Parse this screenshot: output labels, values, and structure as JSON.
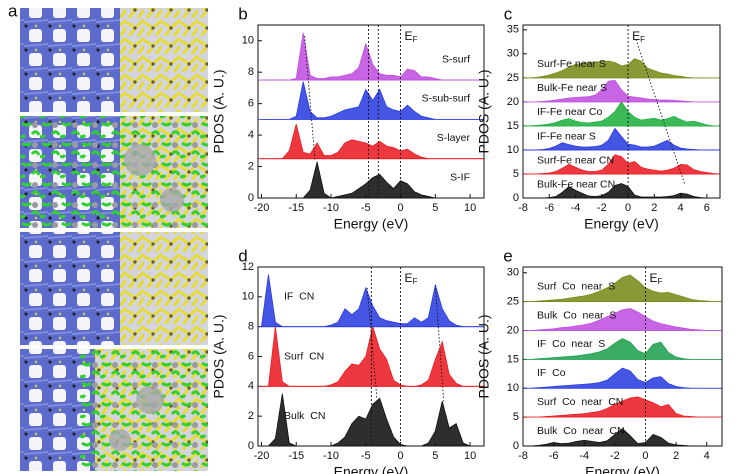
{
  "panel_a": {
    "label": "a"
  },
  "chart_data": [
    {
      "type": "area",
      "panel": "b",
      "xlabel": "Energy (eV)",
      "ylabel": "PDOS (A. U.)",
      "ef_label": {
        "main": "E",
        "sub": "F"
      },
      "x": [
        -20,
        -19,
        -18,
        -17,
        -16,
        -15,
        -14,
        -13,
        -12,
        -11,
        -10,
        -9,
        -8,
        -7,
        -6,
        -5,
        -4,
        -3,
        -2,
        -1,
        0,
        1,
        2,
        3,
        4,
        5,
        6,
        7,
        8,
        9,
        10,
        11,
        12
      ],
      "xlim": [
        -20.5,
        12
      ],
      "xticks": [
        -20,
        -15,
        -10,
        -5,
        0,
        5,
        10
      ],
      "ylim": [
        0,
        11
      ],
      "yticks": [
        0,
        2,
        4,
        6,
        8,
        10
      ],
      "reference_lines": [
        -4.6,
        -3.2,
        0
      ],
      "guide_lines": [
        [
          -13.8,
          10.3,
          -12.3,
          2.4
        ]
      ],
      "series": [
        {
          "name": "S-surf",
          "color": "#c050e0",
          "offset": 7.5,
          "values": [
            0,
            0,
            0,
            0,
            0,
            0.1,
            3.0,
            0.3,
            0.1,
            0.1,
            0.2,
            0.2,
            0.3,
            0.4,
            0.8,
            2.3,
            1.0,
            0.4,
            0.3,
            0.3,
            0.2,
            0.7,
            0.6,
            0.2,
            0.2,
            0.1,
            0,
            0,
            0,
            0,
            0,
            0,
            0
          ]
        },
        {
          "name": "S-sub-surf",
          "color": "#2b3de0",
          "offset": 5,
          "values": [
            0,
            0,
            0,
            0,
            0,
            0.2,
            2.4,
            0.5,
            0.1,
            0.1,
            0.2,
            0.4,
            0.6,
            0.7,
            0.8,
            1.9,
            1.2,
            1.9,
            0.8,
            0.6,
            0.5,
            0.9,
            0.5,
            0.2,
            0.1,
            0,
            0,
            0,
            0,
            0,
            0,
            0,
            0
          ]
        },
        {
          "name": "S-layer",
          "color": "#ec1c24",
          "offset": 2.5,
          "values": [
            0,
            0,
            0,
            0,
            0.5,
            2.2,
            0.4,
            0.3,
            1.0,
            0.2,
            0.2,
            0.4,
            1.0,
            1.2,
            1.1,
            1.0,
            0.8,
            1.1,
            0.8,
            0.7,
            0.5,
            0.6,
            0.3,
            0.1,
            0,
            0,
            0,
            0,
            0,
            0,
            0,
            0,
            0
          ]
        },
        {
          "name": "S-IF",
          "color": "#111111",
          "offset": 0,
          "values": [
            0,
            0,
            0,
            0,
            0,
            0,
            0,
            0.5,
            2.3,
            0.3,
            0,
            0.1,
            0.2,
            0.3,
            0.6,
            0.9,
            1.3,
            1.5,
            1.0,
            0.6,
            1.1,
            0.9,
            0.4,
            0.2,
            0.1,
            0,
            0,
            0,
            0,
            0,
            0,
            0,
            0
          ]
        }
      ]
    },
    {
      "type": "area",
      "panel": "c",
      "xlabel": "Energy (eV)",
      "ylabel": "PDOS (A. U.)",
      "ef_label": {
        "main": "E",
        "sub": "F"
      },
      "x": [
        -8,
        -7.5,
        -7,
        -6.5,
        -6,
        -5.5,
        -5,
        -4.5,
        -4,
        -3.5,
        -3,
        -2.5,
        -2,
        -1.5,
        -1,
        -0.5,
        0,
        0.5,
        1,
        1.5,
        2,
        2.5,
        3,
        3.5,
        4,
        4.5,
        5,
        5.5,
        6,
        6.5,
        7
      ],
      "xlim": [
        -8,
        7
      ],
      "xticks": [
        -8,
        -6,
        -4,
        -2,
        0,
        2,
        4,
        6
      ],
      "ylim": [
        0,
        36
      ],
      "yticks": [
        0,
        5,
        10,
        15,
        20,
        25,
        30,
        35
      ],
      "reference_lines": [
        0
      ],
      "guide_lines": [
        [
          0.6,
          33,
          4.3,
          3
        ]
      ],
      "series": [
        {
          "name": "Surf-Fe near S",
          "color": "#7a8a1a",
          "offset": 25,
          "values": [
            0,
            0,
            0.1,
            0.3,
            0.6,
            1.0,
            1.5,
            2.2,
            2.8,
            3.0,
            3.2,
            3.3,
            3.4,
            3.5,
            3.2,
            2.5,
            2.8,
            4.0,
            3.5,
            2.0,
            1.5,
            1.0,
            0.8,
            0.5,
            0.3,
            0.1,
            0,
            0,
            0,
            0,
            0
          ]
        },
        {
          "name": "Bulk-Fe near S",
          "color": "#c050e0",
          "offset": 20,
          "values": [
            0,
            0,
            0,
            0.1,
            0.2,
            0.4,
            0.6,
            0.8,
            0.9,
            1.0,
            1.1,
            1.4,
            2.5,
            4.3,
            4.5,
            2.5,
            1.2,
            1.0,
            0.8,
            0.6,
            0.5,
            0.4,
            0.4,
            0.3,
            0.2,
            0.1,
            0,
            0,
            0,
            0,
            0
          ]
        },
        {
          "name": "IF-Fe near Co",
          "color": "#20b040",
          "offset": 15,
          "values": [
            0,
            0,
            0.1,
            0.2,
            0.4,
            0.7,
            1.2,
            1.5,
            1.0,
            0.7,
            0.6,
            0.8,
            1.0,
            1.8,
            3.0,
            5.0,
            3.0,
            1.8,
            1.2,
            1.4,
            1.6,
            1.2,
            1.5,
            2.0,
            1.3,
            0.8,
            1.0,
            0.6,
            0.2,
            0,
            0
          ]
        },
        {
          "name": "IF-Fe near S",
          "color": "#2b3de0",
          "offset": 10,
          "values": [
            0,
            0,
            0,
            0.1,
            0.3,
            0.8,
            1.5,
            1.1,
            0.8,
            0.6,
            0.6,
            0.7,
            1.0,
            2.0,
            4.5,
            2.8,
            1.2,
            1.0,
            0.6,
            0.6,
            0.8,
            1.4,
            2.0,
            1.0,
            0.4,
            0.2,
            0.1,
            0,
            0,
            0,
            0
          ]
        },
        {
          "name": "Surf-Fe near CN",
          "color": "#ec1c24",
          "offset": 5,
          "values": [
            0,
            0,
            0,
            0.1,
            0.2,
            0.5,
            1.2,
            2.0,
            1.4,
            0.8,
            0.5,
            0.5,
            0.8,
            2.0,
            4.0,
            3.6,
            2.2,
            2.6,
            1.4,
            1.0,
            0.8,
            0.6,
            0.8,
            1.2,
            2.0,
            1.9,
            0.9,
            0.5,
            0.3,
            0.1,
            0
          ]
        },
        {
          "name": "Bulk-Fe near CN",
          "color": "#111111",
          "offset": 0,
          "values": [
            0,
            0,
            0,
            0,
            0.1,
            0.3,
            1.2,
            2.4,
            1.6,
            1.0,
            0.4,
            0.3,
            0.5,
            1.2,
            2.6,
            3.0,
            2.4,
            0.6,
            0.2,
            0.2,
            0.2,
            0.2,
            0.3,
            0.5,
            1.0,
            0.8,
            0.3,
            0.1,
            0,
            0,
            0
          ]
        }
      ]
    },
    {
      "type": "area",
      "panel": "d",
      "xlabel": "Energy (eV)",
      "ylabel": "PDOS (A. U.)",
      "ef_label": {
        "main": "E",
        "sub": "F"
      },
      "x": [
        -20,
        -19,
        -18,
        -17,
        -16,
        -15,
        -14,
        -13,
        -12,
        -11,
        -10,
        -9,
        -8,
        -7,
        -6,
        -5,
        -4,
        -3,
        -2,
        -1,
        0,
        1,
        2,
        3,
        4,
        5,
        6,
        7,
        8,
        9,
        10,
        11,
        12
      ],
      "xlim": [
        -20.5,
        12
      ],
      "xticks": [
        -20,
        -15,
        -10,
        -5,
        0,
        5,
        10
      ],
      "ylim": [
        0,
        12
      ],
      "yticks": [
        0,
        2,
        4,
        6,
        8,
        10,
        12
      ],
      "reference_lines": [
        -4.2,
        0
      ],
      "guide_lines": [
        [
          -4.8,
          10.6,
          -3.4,
          3.2
        ],
        [
          5,
          10.8,
          6.2,
          3.0
        ]
      ],
      "series": [
        {
          "name": "IF  CN",
          "color": "#2b3de0",
          "offset": 8,
          "values": [
            0,
            3.5,
            0.3,
            0,
            0,
            0,
            0,
            0,
            0,
            0,
            0.1,
            0.3,
            1.2,
            0.8,
            1.2,
            2.6,
            1.4,
            0.6,
            0.4,
            0.3,
            0.2,
            0.2,
            0.6,
            0.3,
            0.6,
            2.8,
            1.2,
            0.4,
            0.1,
            0,
            0,
            0,
            0
          ]
        },
        {
          "name": "Surf  CN",
          "color": "#ec1c24",
          "offset": 4,
          "values": [
            0,
            0,
            4.0,
            0.3,
            0,
            0,
            0,
            0,
            0,
            0,
            0.1,
            0.3,
            1.0,
            1.5,
            1.4,
            2.0,
            4.0,
            2.5,
            1.8,
            0.4,
            0.1,
            0,
            0,
            0.1,
            0.4,
            1.8,
            3.0,
            0.8,
            0.2,
            0,
            0,
            0,
            0
          ]
        },
        {
          "name": "Bulk  CN",
          "color": "#111111",
          "offset": 0,
          "values": [
            0,
            0,
            0.5,
            3.5,
            0.2,
            0,
            0,
            0,
            0,
            0,
            0,
            0.2,
            0.6,
            1.5,
            2.0,
            1.8,
            2.8,
            3.2,
            1.8,
            0.6,
            0.1,
            0,
            0,
            0,
            0.2,
            1.0,
            3.0,
            1.2,
            1.5,
            0.2,
            0,
            0,
            0
          ]
        }
      ]
    },
    {
      "type": "area",
      "panel": "e",
      "xlabel": "Energy (eV)",
      "ylabel": "PDOS (A. U.)",
      "ef_label": {
        "main": "E",
        "sub": "F"
      },
      "x": [
        -8,
        -7.5,
        -7,
        -6.5,
        -6,
        -5.5,
        -5,
        -4.5,
        -4,
        -3.5,
        -3,
        -2.5,
        -2,
        -1.5,
        -1,
        -0.5,
        0,
        0.5,
        1,
        1.5,
        2,
        2.5,
        3,
        3.5,
        4,
        4.5,
        5
      ],
      "xlim": [
        -8,
        5
      ],
      "xticks": [
        -8,
        -6,
        -4,
        -2,
        0,
        2,
        4
      ],
      "ylim": [
        0,
        31
      ],
      "yticks": [
        0,
        5,
        10,
        15,
        20,
        25,
        30
      ],
      "reference_lines": [
        0
      ],
      "guide_lines": [],
      "series": [
        {
          "name": "Surf  Co  near  S",
          "color": "#7a8a1a",
          "offset": 25,
          "values": [
            0,
            0,
            0.1,
            0.2,
            0.3,
            0.4,
            0.6,
            0.8,
            1.0,
            1.3,
            1.8,
            2.4,
            3.2,
            4.2,
            4.6,
            3.6,
            2.4,
            1.8,
            1.5,
            1.6,
            1.2,
            0.8,
            0.4,
            0.2,
            0.1,
            0,
            0
          ]
        },
        {
          "name": "Bulk  Co  near  S",
          "color": "#c050e0",
          "offset": 20,
          "values": [
            0,
            0,
            0.1,
            0.2,
            0.3,
            0.5,
            0.6,
            0.8,
            1.0,
            1.3,
            1.8,
            2.4,
            3.0,
            3.6,
            3.8,
            3.2,
            2.4,
            1.6,
            1.2,
            0.9,
            0.6,
            0.4,
            0.2,
            0.1,
            0,
            0,
            0
          ]
        },
        {
          "name": "IF  Co  near  S",
          "color": "#20a050",
          "offset": 15,
          "values": [
            0,
            0,
            0.1,
            0.2,
            0.3,
            0.4,
            0.5,
            0.6,
            0.8,
            1.0,
            1.3,
            1.8,
            2.8,
            3.6,
            3.0,
            1.5,
            1.0,
            2.6,
            3.0,
            1.2,
            0.4,
            0.1,
            0,
            0,
            0,
            0,
            0
          ]
        },
        {
          "name": "IF  Co",
          "color": "#2b3de0",
          "offset": 10,
          "values": [
            0,
            0,
            0.1,
            0.2,
            0.3,
            0.4,
            0.5,
            0.6,
            0.7,
            0.8,
            1.0,
            1.4,
            2.5,
            3.5,
            3.0,
            1.5,
            1.0,
            1.8,
            2.0,
            0.8,
            0.3,
            0.1,
            0,
            0,
            0,
            0,
            0
          ]
        },
        {
          "name": "Surf  Co  near  CN",
          "color": "#ec1c24",
          "offset": 5,
          "values": [
            0,
            0,
            0,
            0.1,
            0.2,
            0.3,
            0.4,
            0.5,
            0.6,
            0.8,
            1.0,
            1.5,
            2.2,
            2.8,
            3.3,
            3.5,
            3.0,
            2.5,
            1.8,
            2.2,
            0.6,
            0.2,
            0.1,
            0,
            0,
            0,
            0
          ]
        },
        {
          "name": "Bulk  Co  near  CN",
          "color": "#111111",
          "offset": 0,
          "values": [
            0,
            0,
            0.1,
            0.3,
            0.6,
            0.4,
            0.5,
            0.8,
            1.0,
            0.8,
            0.6,
            0.9,
            2.0,
            3.0,
            1.8,
            0.4,
            0.6,
            2.0,
            1.5,
            0.5,
            0.2,
            0.1,
            0,
            0,
            0,
            0,
            0
          ]
        }
      ]
    }
  ]
}
